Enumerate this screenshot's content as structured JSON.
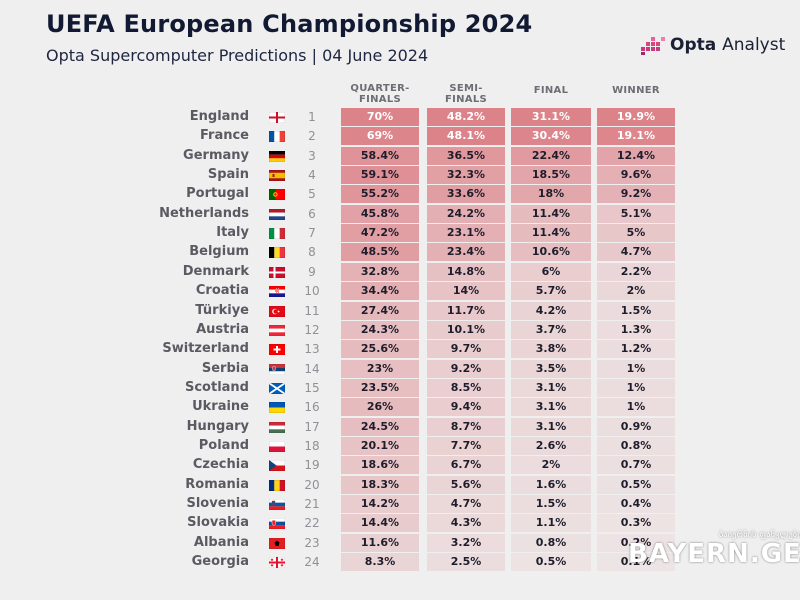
{
  "header": {
    "title": "UEFA European Championship 2024",
    "subtitle": "Opta Supercomputer Predictions | 04 June 2024",
    "brand": {
      "name_bold": "Opta",
      "name_light": "Analyst"
    }
  },
  "columns": [
    {
      "line1": "QUARTER-",
      "line2": "FINALS"
    },
    {
      "line1": "SEMI-",
      "line2": "FINALS"
    },
    {
      "line1": "FINAL",
      "line2": ""
    },
    {
      "line1": "WINNER",
      "line2": ""
    }
  ],
  "colors": {
    "heat": "#d4555e",
    "background": "#efefef",
    "title": "#121a33"
  },
  "chart_data": {
    "type": "table",
    "title": "UEFA European Championship 2024",
    "subtitle": "Opta Supercomputer Predictions | 04 June 2024",
    "columns": [
      "QUARTER-FINALS",
      "SEMI-FINALS",
      "FINAL",
      "WINNER"
    ],
    "rows": [
      {
        "rank": 1,
        "team": "England",
        "flag": "england",
        "values": [
          "70%",
          "48.2%",
          "31.1%",
          "19.9%"
        ]
      },
      {
        "rank": 2,
        "team": "France",
        "flag": "france",
        "values": [
          "69%",
          "48.1%",
          "30.4%",
          "19.1%"
        ]
      },
      {
        "rank": 3,
        "team": "Germany",
        "flag": "germany",
        "values": [
          "58.4%",
          "36.5%",
          "22.4%",
          "12.4%"
        ]
      },
      {
        "rank": 4,
        "team": "Spain",
        "flag": "spain",
        "values": [
          "59.1%",
          "32.3%",
          "18.5%",
          "9.6%"
        ]
      },
      {
        "rank": 5,
        "team": "Portugal",
        "flag": "portugal",
        "values": [
          "55.2%",
          "33.6%",
          "18%",
          "9.2%"
        ]
      },
      {
        "rank": 6,
        "team": "Netherlands",
        "flag": "netherlands",
        "values": [
          "45.8%",
          "24.2%",
          "11.4%",
          "5.1%"
        ]
      },
      {
        "rank": 7,
        "team": "Italy",
        "flag": "italy",
        "values": [
          "47.2%",
          "23.1%",
          "11.4%",
          "5%"
        ]
      },
      {
        "rank": 8,
        "team": "Belgium",
        "flag": "belgium",
        "values": [
          "48.5%",
          "23.4%",
          "10.6%",
          "4.7%"
        ]
      },
      {
        "rank": 9,
        "team": "Denmark",
        "flag": "denmark",
        "values": [
          "32.8%",
          "14.8%",
          "6%",
          "2.2%"
        ]
      },
      {
        "rank": 10,
        "team": "Croatia",
        "flag": "croatia",
        "values": [
          "34.4%",
          "14%",
          "5.7%",
          "2%"
        ]
      },
      {
        "rank": 11,
        "team": "Türkiye",
        "flag": "turkiye",
        "values": [
          "27.4%",
          "11.7%",
          "4.2%",
          "1.5%"
        ]
      },
      {
        "rank": 12,
        "team": "Austria",
        "flag": "austria",
        "values": [
          "24.3%",
          "10.1%",
          "3.7%",
          "1.3%"
        ]
      },
      {
        "rank": 13,
        "team": "Switzerland",
        "flag": "switzerland",
        "values": [
          "25.6%",
          "9.7%",
          "3.8%",
          "1.2%"
        ]
      },
      {
        "rank": 14,
        "team": "Serbia",
        "flag": "serbia",
        "values": [
          "23%",
          "9.2%",
          "3.5%",
          "1%"
        ]
      },
      {
        "rank": 15,
        "team": "Scotland",
        "flag": "scotland",
        "values": [
          "23.5%",
          "8.5%",
          "3.1%",
          "1%"
        ]
      },
      {
        "rank": 16,
        "team": "Ukraine",
        "flag": "ukraine",
        "values": [
          "26%",
          "9.4%",
          "3.1%",
          "1%"
        ]
      },
      {
        "rank": 17,
        "team": "Hungary",
        "flag": "hungary",
        "values": [
          "24.5%",
          "8.7%",
          "3.1%",
          "0.9%"
        ]
      },
      {
        "rank": 18,
        "team": "Poland",
        "flag": "poland",
        "values": [
          "20.1%",
          "7.7%",
          "2.6%",
          "0.8%"
        ]
      },
      {
        "rank": 19,
        "team": "Czechia",
        "flag": "czechia",
        "values": [
          "18.6%",
          "6.7%",
          "2%",
          "0.7%"
        ]
      },
      {
        "rank": 20,
        "team": "Romania",
        "flag": "romania",
        "values": [
          "18.3%",
          "5.6%",
          "1.6%",
          "0.5%"
        ]
      },
      {
        "rank": 21,
        "team": "Slovenia",
        "flag": "slovenia",
        "values": [
          "14.2%",
          "4.7%",
          "1.5%",
          "0.4%"
        ]
      },
      {
        "rank": 22,
        "team": "Slovakia",
        "flag": "slovakia",
        "values": [
          "14.4%",
          "4.3%",
          "1.1%",
          "0.3%"
        ]
      },
      {
        "rank": 23,
        "team": "Albania",
        "flag": "albania",
        "values": [
          "11.6%",
          "3.2%",
          "0.8%",
          "0.2%"
        ]
      },
      {
        "rank": 24,
        "team": "Georgia",
        "flag": "georgia",
        "values": [
          "8.3%",
          "2.5%",
          "0.5%",
          "0.1%"
        ]
      }
    ]
  },
  "watermark": {
    "small": "ბაიერნის ფანკლუბი",
    "big": "BAYERN.GE"
  }
}
